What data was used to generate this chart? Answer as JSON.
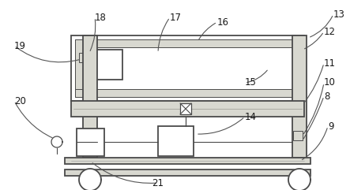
{
  "bg_color": "#ffffff",
  "line_color": "#4a4a4a",
  "fill_light": "#d8d8d0",
  "lw_main": 1.3,
  "lw_thin": 0.7,
  "label_fontsize": 8.5,
  "label_color": "#1a1a1a",
  "leader_color": "#555555",
  "leader_lw": 0.8
}
